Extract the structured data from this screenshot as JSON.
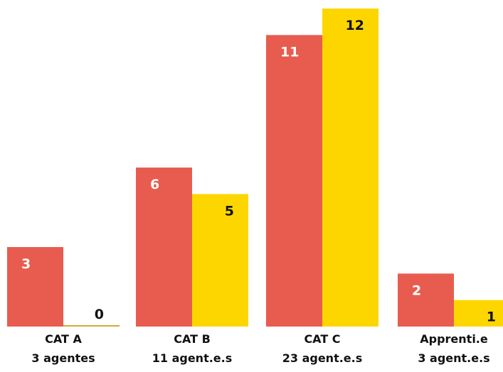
{
  "chart_data": {
    "type": "bar",
    "title": "",
    "xlabel": "",
    "ylabel": "",
    "ylim": [
      0,
      12
    ],
    "grid": false,
    "legend": "none",
    "categories": [
      {
        "name": "CAT A",
        "sub": "3 agentes"
      },
      {
        "name": "CAT B",
        "sub": "11 agent.e.s"
      },
      {
        "name": "CAT C",
        "sub": "23 agent.e.s"
      },
      {
        "name": "Apprenti.e",
        "sub": "3 agent.e.s"
      }
    ],
    "series": [
      {
        "values": [
          3,
          6,
          11,
          2
        ],
        "color": "#E85C4F",
        "label_color": "#ffffff"
      },
      {
        "values": [
          0,
          5,
          12,
          1
        ],
        "color": "#FDD600",
        "label_color": "#111111"
      }
    ]
  }
}
